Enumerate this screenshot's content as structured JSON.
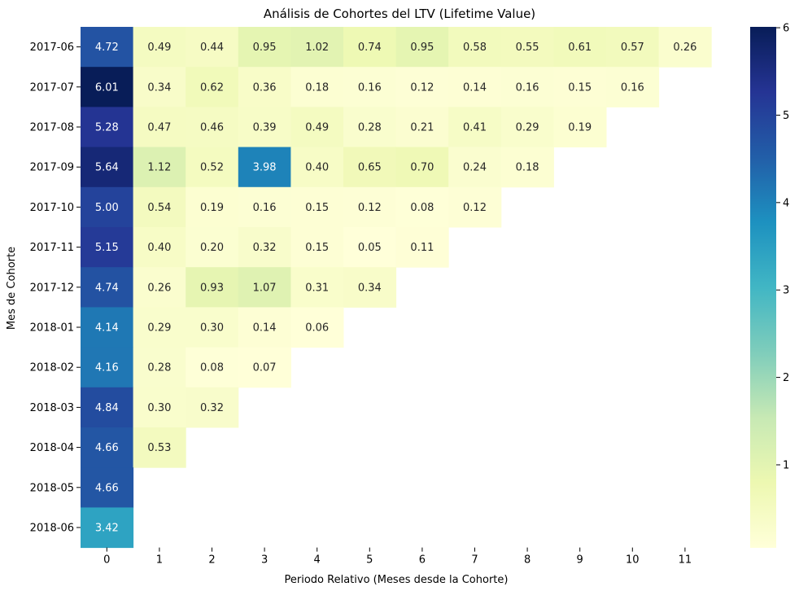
{
  "chart_data": {
    "type": "heatmap",
    "title": "Análisis de Cohortes del LTV (Lifetime Value)",
    "xlabel": "Periodo Relativo (Meses desde la Cohorte)",
    "ylabel": "Mes de Cohorte",
    "x": [
      "0",
      "1",
      "2",
      "3",
      "4",
      "5",
      "6",
      "7",
      "8",
      "9",
      "10",
      "11"
    ],
    "y": [
      "2017-06",
      "2017-07",
      "2017-08",
      "2017-09",
      "2017-10",
      "2017-11",
      "2017-12",
      "2018-01",
      "2018-02",
      "2018-03",
      "2018-04",
      "2018-05",
      "2018-06"
    ],
    "values": [
      [
        4.72,
        0.49,
        0.44,
        0.95,
        1.02,
        0.74,
        0.95,
        0.58,
        0.55,
        0.61,
        0.57,
        0.26
      ],
      [
        6.01,
        0.34,
        0.62,
        0.36,
        0.18,
        0.16,
        0.12,
        0.14,
        0.16,
        0.15,
        0.16
      ],
      [
        5.28,
        0.47,
        0.46,
        0.39,
        0.49,
        0.28,
        0.21,
        0.41,
        0.29,
        0.19
      ],
      [
        5.64,
        1.12,
        0.52,
        3.98,
        0.4,
        0.65,
        0.7,
        0.24,
        0.18
      ],
      [
        5.0,
        0.54,
        0.19,
        0.16,
        0.15,
        0.12,
        0.08,
        0.12
      ],
      [
        5.15,
        0.4,
        0.2,
        0.32,
        0.15,
        0.05,
        0.11
      ],
      [
        4.74,
        0.26,
        0.93,
        1.07,
        0.31,
        0.34
      ],
      [
        4.14,
        0.29,
        0.3,
        0.14,
        0.06
      ],
      [
        4.16,
        0.28,
        0.08,
        0.07
      ],
      [
        4.84,
        0.3,
        0.32
      ],
      [
        4.66,
        0.53
      ],
      [
        4.66
      ],
      [
        3.42
      ]
    ],
    "value_format_decimals": 2,
    "colormap": "YlGnBu",
    "colorbar": {
      "min": 0.05,
      "max": 6.01,
      "ticks": [
        "1",
        "2",
        "3",
        "4",
        "5",
        "6"
      ]
    }
  }
}
